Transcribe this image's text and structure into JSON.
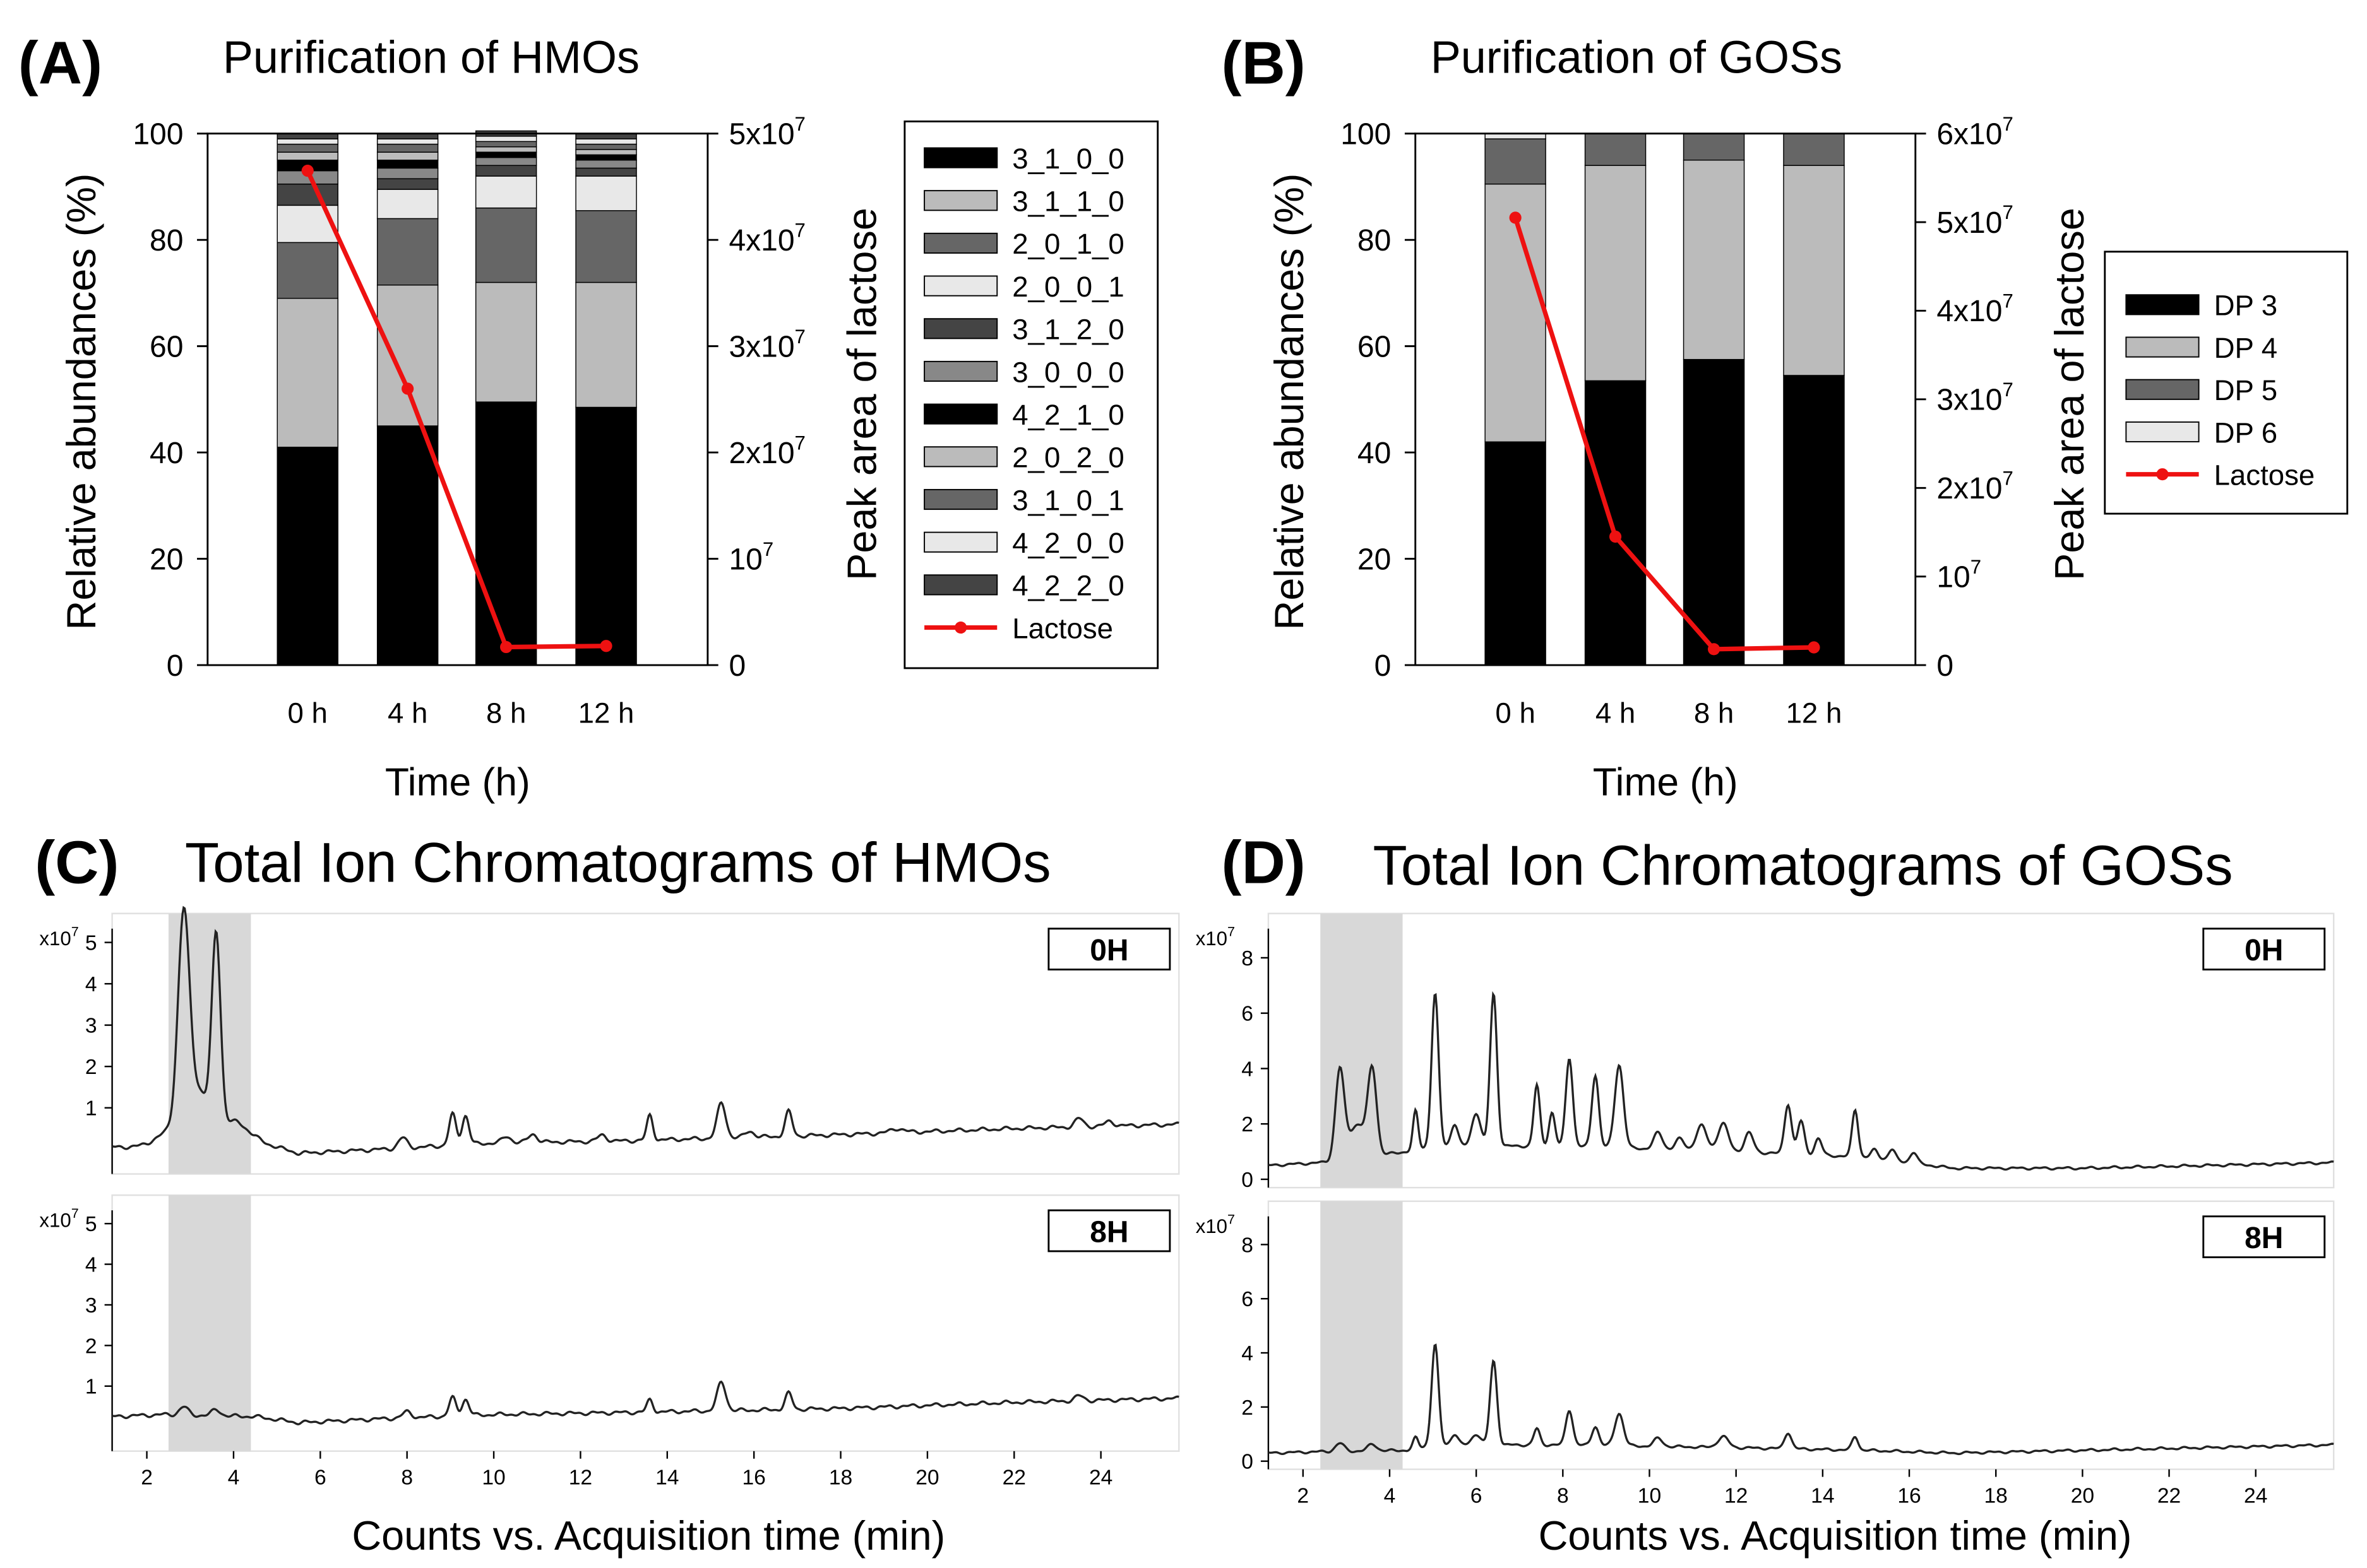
{
  "panels": {
    "A": {
      "label": "(A)",
      "title": "Purification of HMOs",
      "chart_data": {
        "type": "bar",
        "stacked": true,
        "secondary_line": "Lactose",
        "categories": [
          "0 h",
          "4 h",
          "8 h",
          "12 h"
        ],
        "xlabel": "Time (h)",
        "ylabel": "Relative abundances (%)",
        "ylim": [
          0,
          100
        ],
        "yticks": [
          "0",
          "20",
          "40",
          "60",
          "80",
          "100"
        ],
        "y2label": "Peak area of lactose",
        "y2lim": [
          0,
          50000000
        ],
        "y2ticks": [
          {
            "base": "0",
            "exp": ""
          },
          {
            "base": "10",
            "exp": "7"
          },
          {
            "base": "2x10",
            "exp": "7"
          },
          {
            "base": "3x10",
            "exp": "7"
          },
          {
            "base": "4x10",
            "exp": "7"
          },
          {
            "base": "5x10",
            "exp": "7"
          }
        ],
        "series": [
          {
            "name": "3_1_0_0",
            "color": "#000000",
            "values": [
              41,
              45,
              49.5,
              48.5
            ]
          },
          {
            "name": "3_1_1_0",
            "color": "#bbbbbb",
            "values": [
              28,
              26.5,
              22.5,
              23.5
            ]
          },
          {
            "name": "2_0_1_0",
            "color": "#666666",
            "values": [
              10.5,
              12.5,
              14,
              13.5
            ]
          },
          {
            "name": "2_0_0_1",
            "color": "#e8e8e8",
            "values": [
              7,
              5.5,
              6,
              6.5
            ]
          },
          {
            "name": "3_1_2_0",
            "color": "#444444",
            "values": [
              4,
              2,
              2,
              1.5
            ]
          },
          {
            "name": "3_0_0_0",
            "color": "#888888",
            "values": [
              2.5,
              2,
              1.5,
              1.5
            ]
          },
          {
            "name": "4_2_1_0",
            "color": "#000000",
            "values": [
              2,
              1.5,
              1,
              1
            ]
          },
          {
            "name": "2_0_2_0",
            "color": "#bbbbbb",
            "values": [
              1.5,
              1.5,
              1,
              1
            ]
          },
          {
            "name": "3_1_0_1",
            "color": "#666666",
            "values": [
              1.5,
              1.5,
              1,
              1
            ]
          },
          {
            "name": "4_2_0_0",
            "color": "#e8e8e8",
            "values": [
              1,
              1,
              1,
              1
            ]
          },
          {
            "name": "4_2_2_0",
            "color": "#444444",
            "values": [
              1,
              1,
              1,
              1
            ]
          }
        ],
        "line": {
          "name": "Lactose",
          "color": "#ee1111",
          "values": [
            46500000,
            26000000,
            1700000,
            1800000
          ]
        }
      }
    },
    "B": {
      "label": "(B)",
      "title": "Purification of GOSs",
      "chart_data": {
        "type": "bar",
        "stacked": true,
        "secondary_line": "Lactose",
        "categories": [
          "0 h",
          "4 h",
          "8 h",
          "12 h"
        ],
        "xlabel": "Time (h)",
        "ylabel": "Relative abundances (%)",
        "ylim": [
          0,
          100
        ],
        "yticks": [
          "0",
          "20",
          "40",
          "60",
          "80",
          "100"
        ],
        "y2label": "Peak area of lactose",
        "y2lim": [
          0,
          60000000
        ],
        "y2ticks": [
          {
            "base": "0",
            "exp": ""
          },
          {
            "base": "10",
            "exp": "7"
          },
          {
            "base": "2x10",
            "exp": "7"
          },
          {
            "base": "3x10",
            "exp": "7"
          },
          {
            "base": "4x10",
            "exp": "7"
          },
          {
            "base": "5x10",
            "exp": "7"
          },
          {
            "base": "6x10",
            "exp": "7"
          }
        ],
        "series": [
          {
            "name": "DP 3",
            "color": "#000000",
            "values": [
              42,
              53.5,
              57.5,
              54.5
            ]
          },
          {
            "name": "DP 4",
            "color": "#bbbbbb",
            "values": [
              48.5,
              40.5,
              37.5,
              39.5
            ]
          },
          {
            "name": "DP 5",
            "color": "#666666",
            "values": [
              8.5,
              6,
              5,
              6
            ]
          },
          {
            "name": "DP 6",
            "color": "#e8e8e8",
            "values": [
              1,
              0,
              0,
              0
            ]
          }
        ],
        "line": {
          "name": "Lactose",
          "color": "#ee1111",
          "values": [
            50500000,
            14500000,
            1800000,
            2000000
          ]
        }
      }
    },
    "C": {
      "label": "(C)",
      "title": "Total Ion Chromatograms of HMOs",
      "xlabel": "Counts vs. Acquisition time (min)",
      "scale_base": "x10",
      "scale_exp": "7",
      "chart_data": {
        "type": "line",
        "xlim": [
          1.2,
          25.8
        ],
        "ylim": [
          -0.6,
          5.7
        ],
        "xticks": [
          2,
          4,
          6,
          8,
          10,
          12,
          14,
          16,
          18,
          20,
          22,
          24
        ],
        "yticks": [
          1,
          2,
          3,
          4,
          5
        ],
        "highlight_range": [
          2.5,
          4.4
        ],
        "highlight_color": "#d8d8d8",
        "panels": [
          {
            "tag": "0H",
            "baseline": [
              [
                1.2,
                0.05
              ],
              [
                2.4,
                0.05
              ],
              [
                4.5,
                0.2
              ],
              [
                5.5,
                -0.1
              ],
              [
                7.5,
                0.0
              ],
              [
                10,
                0.15
              ],
              [
                13,
                0.2
              ],
              [
                18,
                0.35
              ],
              [
                22,
                0.5
              ],
              [
                25.8,
                0.6
              ]
            ],
            "peaks": [
              [
                2.85,
                5.0,
                0.13
              ],
              [
                3.6,
                4.6,
                0.1
              ],
              [
                2.6,
                0.4,
                0.35
              ],
              [
                3.2,
                1.2,
                0.25
              ],
              [
                4.0,
                0.5,
                0.3
              ],
              [
                7.9,
                0.25,
                0.1
              ],
              [
                9.05,
                0.75,
                0.08
              ],
              [
                9.35,
                0.7,
                0.08
              ],
              [
                10.3,
                0.15,
                0.1
              ],
              [
                10.9,
                0.2,
                0.1
              ],
              [
                12.5,
                0.15,
                0.1
              ],
              [
                13.6,
                0.6,
                0.07
              ],
              [
                15.25,
                0.85,
                0.1
              ],
              [
                15.9,
                0.15,
                0.1
              ],
              [
                16.8,
                0.6,
                0.08
              ],
              [
                19.3,
                0.1,
                0.15
              ],
              [
                23.5,
                0.2,
                0.1
              ],
              [
                24.2,
                0.12,
                0.1
              ]
            ]
          },
          {
            "tag": "8H",
            "baseline": [
              [
                1.2,
                0.25
              ],
              [
                2.4,
                0.3
              ],
              [
                4.5,
                0.25
              ],
              [
                5.5,
                0.1
              ],
              [
                7.5,
                0.2
              ],
              [
                10,
                0.3
              ],
              [
                13,
                0.35
              ],
              [
                18,
                0.45
              ],
              [
                22,
                0.6
              ],
              [
                25.8,
                0.7
              ]
            ],
            "peaks": [
              [
                2.85,
                0.2,
                0.1
              ],
              [
                3.6,
                0.15,
                0.1
              ],
              [
                8.0,
                0.15,
                0.1
              ],
              [
                9.05,
                0.45,
                0.08
              ],
              [
                9.35,
                0.4,
                0.08
              ],
              [
                13.6,
                0.3,
                0.07
              ],
              [
                15.25,
                0.7,
                0.1
              ],
              [
                16.8,
                0.4,
                0.08
              ],
              [
                23.5,
                0.12,
                0.1
              ]
            ]
          }
        ]
      }
    },
    "D": {
      "label": "(D)",
      "title": "Total Ion Chromatograms of GOSs",
      "xlabel": "Counts vs. Acquisition time (min)",
      "scale_base": "x10",
      "scale_exp": "7",
      "chart_data": {
        "type": "line",
        "xlim": [
          1.2,
          25.8
        ],
        "ylim": [
          -0.3,
          9.6
        ],
        "xticks": [
          2,
          4,
          6,
          8,
          10,
          12,
          14,
          16,
          18,
          20,
          22,
          24
        ],
        "yticks": [
          0,
          2,
          4,
          6,
          8
        ],
        "highlight_range": [
          2.4,
          4.3
        ],
        "highlight_color": "#d8d8d8",
        "panels": [
          {
            "tag": "0H",
            "baseline": [
              [
                1.2,
                0.5
              ],
              [
                2.4,
                0.6
              ],
              [
                4.4,
                1.0
              ],
              [
                5,
                1.2
              ],
              [
                8,
                1.2
              ],
              [
                12,
                1.0
              ],
              [
                15,
                0.8
              ],
              [
                17,
                0.4
              ],
              [
                20,
                0.4
              ],
              [
                25.8,
                0.6
              ]
            ],
            "peaks": [
              [
                2.85,
                3.2,
                0.1
              ],
              [
                3.6,
                3.0,
                0.1
              ],
              [
                3.25,
                1.2,
                0.2
              ],
              [
                4.6,
                1.4,
                0.06
              ],
              [
                5.05,
                5.5,
                0.08
              ],
              [
                5.5,
                0.8,
                0.08
              ],
              [
                6.0,
                1.2,
                0.1
              ],
              [
                6.4,
                5.5,
                0.08
              ],
              [
                7.4,
                2.2,
                0.07
              ],
              [
                7.75,
                1.2,
                0.07
              ],
              [
                8.15,
                3.2,
                0.08
              ],
              [
                8.75,
                2.6,
                0.08
              ],
              [
                9.3,
                3.0,
                0.1
              ],
              [
                10.2,
                0.6,
                0.1
              ],
              [
                10.7,
                0.4,
                0.1
              ],
              [
                11.2,
                0.9,
                0.12
              ],
              [
                11.7,
                1.0,
                0.12
              ],
              [
                12.3,
                0.7,
                0.1
              ],
              [
                13.2,
                1.8,
                0.08
              ],
              [
                13.5,
                1.2,
                0.08
              ],
              [
                13.9,
                0.6,
                0.08
              ],
              [
                14.75,
                1.7,
                0.07
              ],
              [
                15.2,
                0.3,
                0.08
              ],
              [
                15.6,
                0.4,
                0.08
              ],
              [
                16.1,
                0.4,
                0.08
              ]
            ]
          },
          {
            "tag": "8H",
            "baseline": [
              [
                1.2,
                0.3
              ],
              [
                2.4,
                0.35
              ],
              [
                4.4,
                0.4
              ],
              [
                5,
                0.6
              ],
              [
                8,
                0.6
              ],
              [
                12,
                0.5
              ],
              [
                15,
                0.4
              ],
              [
                17,
                0.3
              ],
              [
                20,
                0.4
              ],
              [
                25.8,
                0.6
              ]
            ],
            "peaks": [
              [
                2.85,
                0.3,
                0.1
              ],
              [
                3.6,
                0.25,
                0.1
              ],
              [
                4.6,
                0.4,
                0.06
              ],
              [
                5.05,
                3.7,
                0.08
              ],
              [
                5.5,
                0.4,
                0.08
              ],
              [
                6.0,
                0.4,
                0.1
              ],
              [
                6.4,
                3.1,
                0.08
              ],
              [
                7.4,
                0.6,
                0.07
              ],
              [
                8.15,
                1.3,
                0.08
              ],
              [
                8.75,
                0.7,
                0.08
              ],
              [
                9.3,
                1.2,
                0.1
              ],
              [
                10.2,
                0.3,
                0.1
              ],
              [
                11.7,
                0.4,
                0.12
              ],
              [
                13.2,
                0.6,
                0.08
              ],
              [
                14.75,
                0.5,
                0.07
              ]
            ]
          }
        ]
      }
    }
  }
}
